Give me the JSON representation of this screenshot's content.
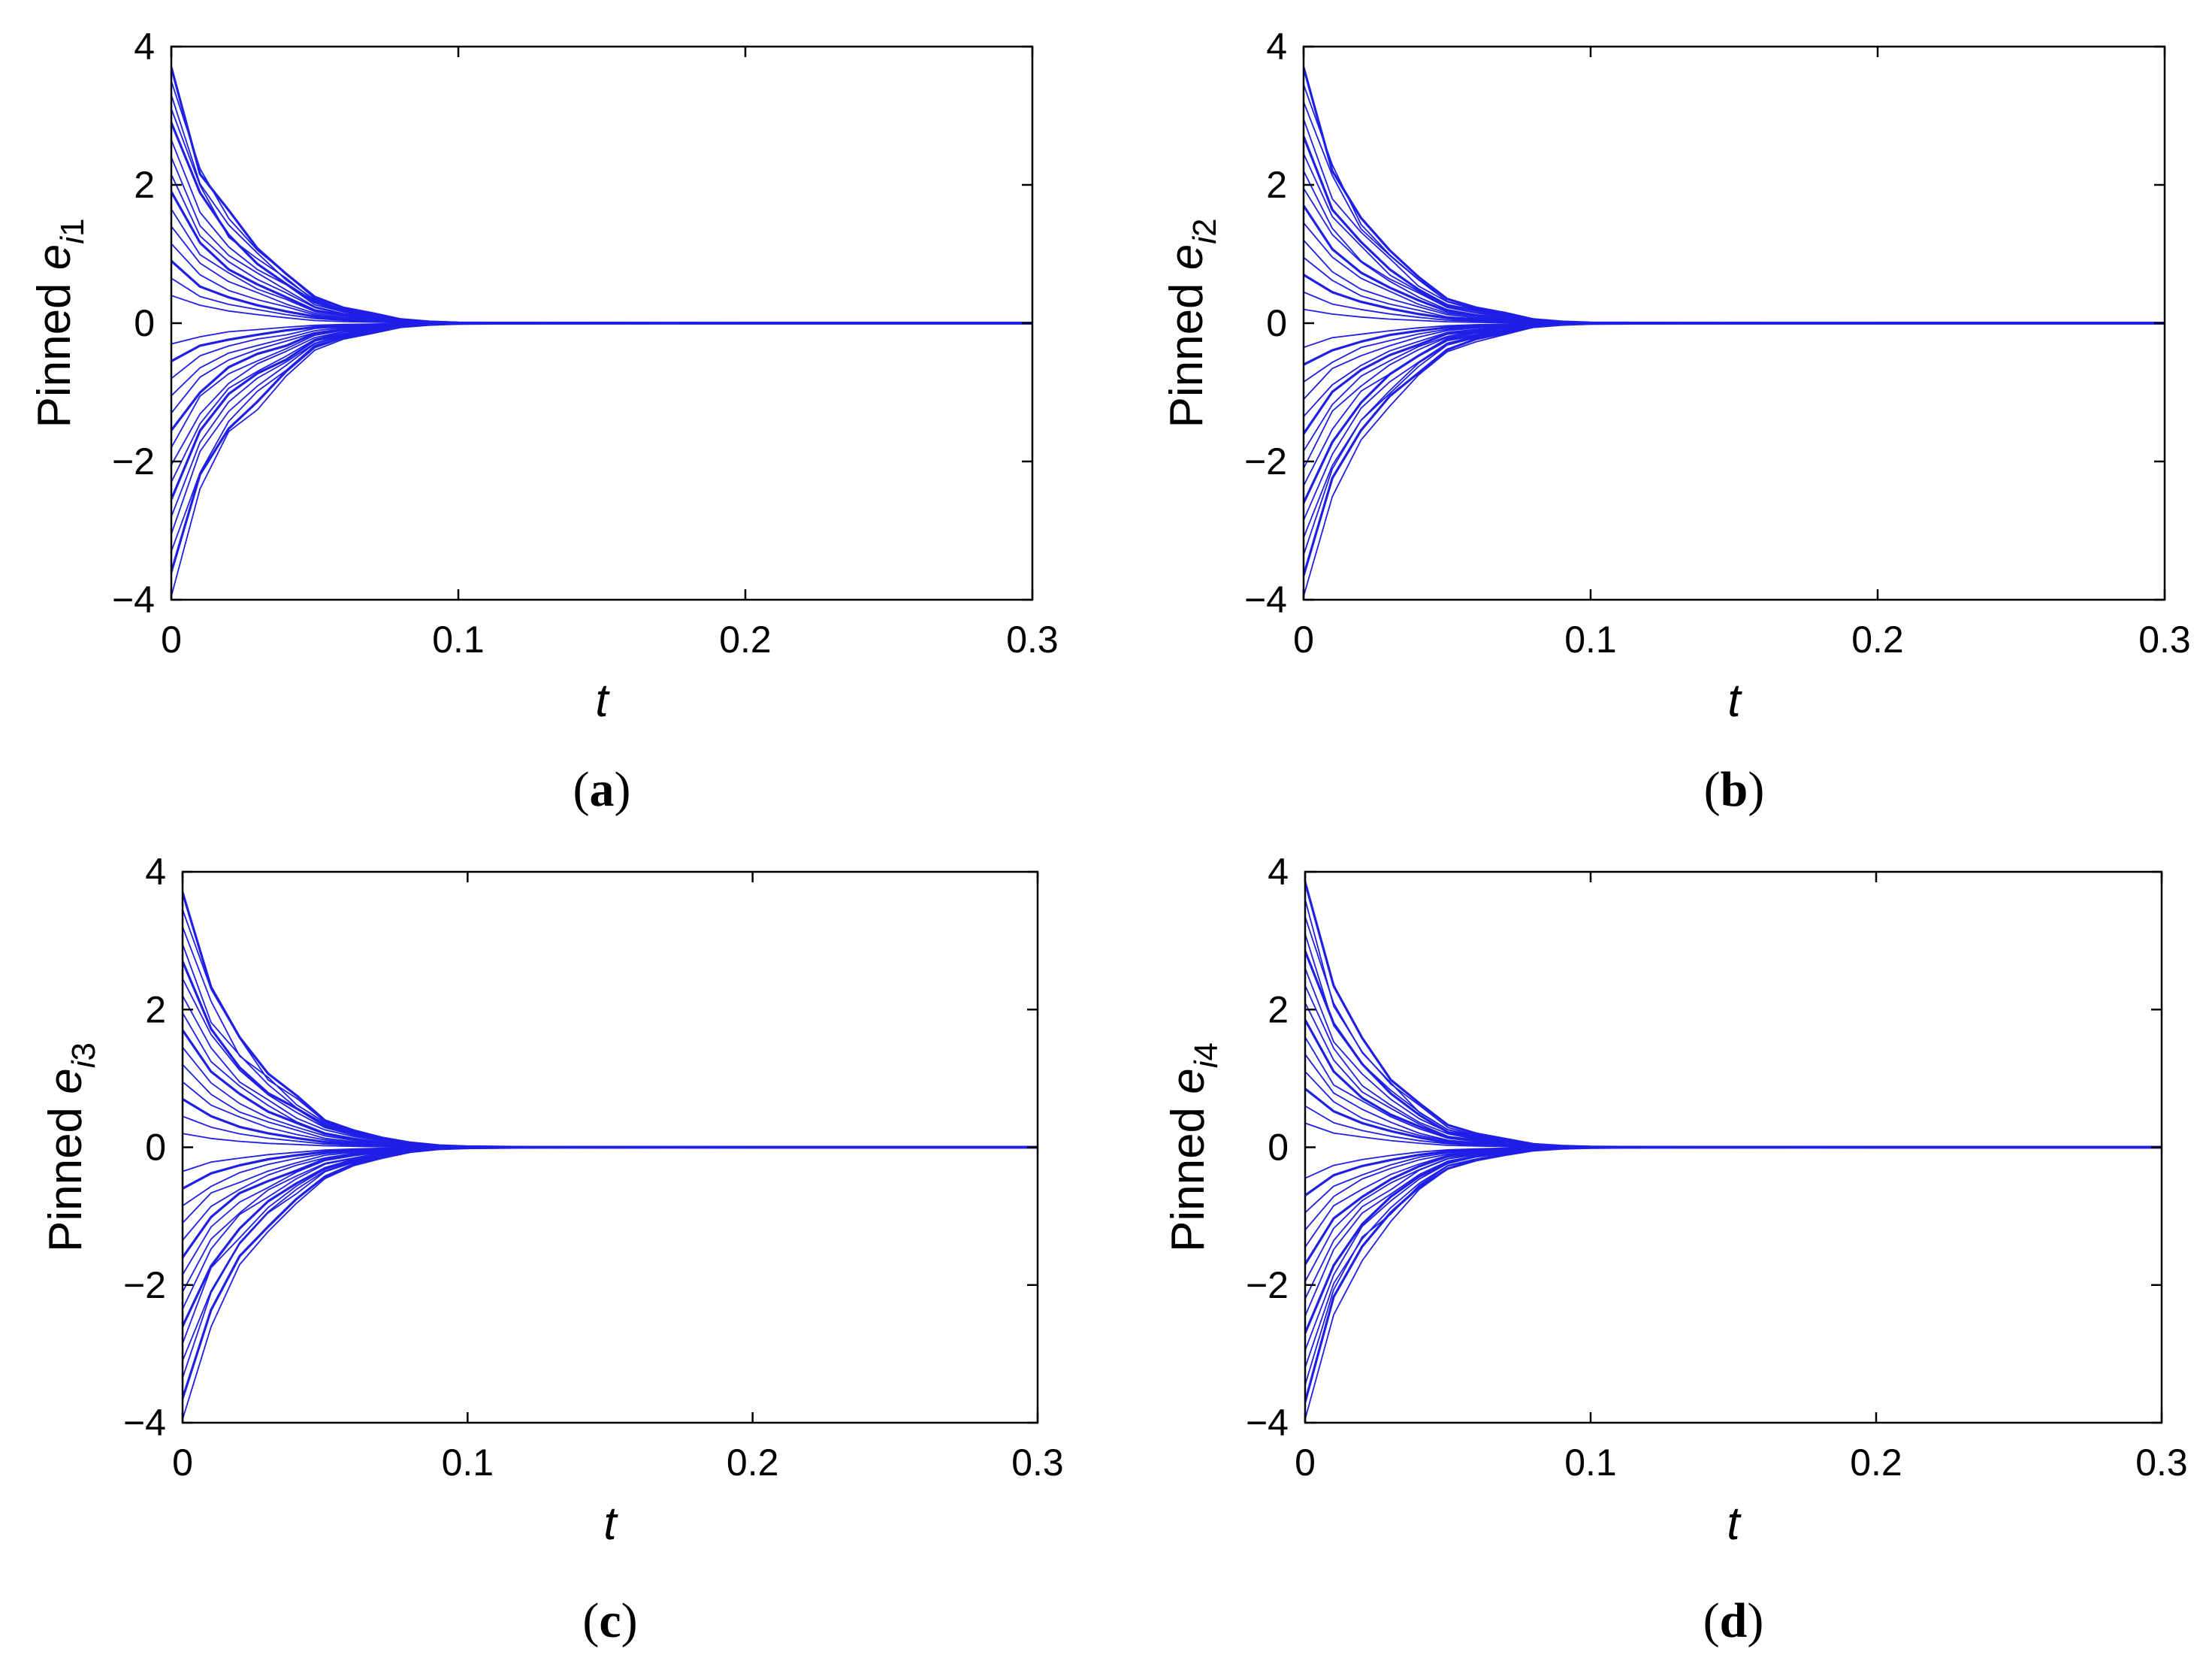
{
  "figure": {
    "captions": [
      "(a)",
      "(b)",
      "(c)",
      "(d)"
    ]
  },
  "style": {
    "line_color": "#1f1fe6",
    "axis_color": "#000000",
    "background": "#ffffff"
  },
  "chart_data": [
    {
      "type": "line",
      "panel": "a",
      "caption": {
        "open": "(",
        "letter": "a",
        "close": ")"
      },
      "xlabel": "t",
      "ylabel": {
        "prefix": "Pinned ",
        "var": "e",
        "sub_i": "i",
        "sub_n": "1"
      },
      "xlim": [
        0,
        0.3
      ],
      "ylim": [
        -4,
        4
      ],
      "xticks": [
        0,
        0.1,
        0.2,
        0.3
      ],
      "xtick_labels": [
        "0",
        "0.1",
        "0.2",
        "0.3"
      ],
      "yticks": [
        -4,
        -2,
        0,
        2,
        4
      ],
      "ytick_labels": [
        "−4",
        "−2",
        "0",
        "2",
        "4"
      ],
      "grid": false,
      "n_series": 30,
      "x": [
        0,
        0.01,
        0.02,
        0.03,
        0.04,
        0.05,
        0.06,
        0.07,
        0.08,
        0.09,
        0.1,
        0.12,
        0.15,
        0.2,
        0.3
      ],
      "series_initial": [
        3.7,
        3.5,
        3.3,
        3.1,
        2.9,
        2.65,
        2.4,
        2.15,
        1.9,
        1.65,
        1.4,
        1.15,
        0.9,
        0.65,
        0.4,
        -0.3,
        -0.55,
        -0.8,
        -1.05,
        -1.3,
        -1.55,
        -1.8,
        -2.05,
        -2.3,
        -2.55,
        -2.8,
        -3.05,
        -3.3,
        -3.6,
        -3.95
      ],
      "decay_profile": [
        1.0,
        0.62,
        0.42,
        0.3,
        0.2,
        0.1,
        0.06,
        0.04,
        0.015,
        0.006,
        0.002,
        0.0008,
        0.0002,
        0.0,
        0.0
      ]
    },
    {
      "type": "line",
      "panel": "b",
      "caption": {
        "open": "(",
        "letter": "b",
        "close": ")"
      },
      "xlabel": "t",
      "ylabel": {
        "prefix": "Pinned ",
        "var": "e",
        "sub_i": "i",
        "sub_n": "2"
      },
      "xlim": [
        0,
        0.3
      ],
      "ylim": [
        -4,
        4
      ],
      "xticks": [
        0,
        0.1,
        0.2,
        0.3
      ],
      "xtick_labels": [
        "0",
        "0.1",
        "0.2",
        "0.3"
      ],
      "yticks": [
        -4,
        -2,
        0,
        2,
        4
      ],
      "ytick_labels": [
        "−4",
        "−2",
        "0",
        "2",
        "4"
      ],
      "grid": false,
      "n_series": 30,
      "x": [
        0,
        0.01,
        0.02,
        0.03,
        0.04,
        0.05,
        0.06,
        0.07,
        0.08,
        0.09,
        0.1,
        0.12,
        0.15,
        0.2,
        0.3
      ],
      "series_initial": [
        3.7,
        3.45,
        3.2,
        2.95,
        2.7,
        2.45,
        2.2,
        1.95,
        1.7,
        1.45,
        1.2,
        0.95,
        0.7,
        0.45,
        0.2,
        -0.35,
        -0.6,
        -0.85,
        -1.1,
        -1.35,
        -1.6,
        -1.85,
        -2.1,
        -2.35,
        -2.6,
        -2.85,
        -3.1,
        -3.35,
        -3.65,
        -3.95
      ],
      "decay_profile": [
        1.0,
        0.63,
        0.43,
        0.3,
        0.19,
        0.1,
        0.065,
        0.04,
        0.015,
        0.006,
        0.002,
        0.0008,
        0.0002,
        0.0,
        0.0
      ]
    },
    {
      "type": "line",
      "panel": "c",
      "caption": {
        "open": "(",
        "letter": "c",
        "close": ")"
      },
      "xlabel": "t",
      "ylabel": {
        "prefix": "Pinned ",
        "var": "e",
        "sub_i": "i",
        "sub_n": "3"
      },
      "xlim": [
        0,
        0.3
      ],
      "ylim": [
        -4,
        4
      ],
      "xticks": [
        0,
        0.1,
        0.2,
        0.3
      ],
      "xtick_labels": [
        "0",
        "0.1",
        "0.2",
        "0.3"
      ],
      "yticks": [
        -4,
        -2,
        0,
        2,
        4
      ],
      "ytick_labels": [
        "−4",
        "−2",
        "0",
        "2",
        "4"
      ],
      "grid": false,
      "n_series": 30,
      "x": [
        0,
        0.01,
        0.02,
        0.03,
        0.04,
        0.05,
        0.06,
        0.07,
        0.08,
        0.09,
        0.1,
        0.12,
        0.15,
        0.2,
        0.3
      ],
      "series_initial": [
        3.7,
        3.45,
        3.2,
        2.95,
        2.7,
        2.45,
        2.2,
        1.95,
        1.7,
        1.45,
        1.2,
        0.95,
        0.7,
        0.45,
        0.2,
        -0.35,
        -0.6,
        -0.85,
        -1.1,
        -1.35,
        -1.6,
        -1.85,
        -2.1,
        -2.35,
        -2.6,
        -2.85,
        -3.1,
        -3.35,
        -3.65,
        -3.95
      ],
      "decay_profile": [
        1.0,
        0.64,
        0.44,
        0.3,
        0.2,
        0.11,
        0.07,
        0.04,
        0.018,
        0.007,
        0.003,
        0.001,
        0.0003,
        0.0,
        0.0
      ]
    },
    {
      "type": "line",
      "panel": "d",
      "caption": {
        "open": "(",
        "letter": "d",
        "close": ")"
      },
      "xlabel": "t",
      "ylabel": {
        "prefix": "Pinned ",
        "var": "e",
        "sub_i": "i",
        "sub_n": "4"
      },
      "xlim": [
        0,
        0.3
      ],
      "ylim": [
        -4,
        4
      ],
      "xticks": [
        0,
        0.1,
        0.2,
        0.3
      ],
      "xtick_labels": [
        "0",
        "0.1",
        "0.2",
        "0.3"
      ],
      "yticks": [
        -4,
        -2,
        0,
        2,
        4
      ],
      "ytick_labels": [
        "−4",
        "−2",
        "0",
        "2",
        "4"
      ],
      "grid": false,
      "n_series": 30,
      "x": [
        0,
        0.01,
        0.02,
        0.03,
        0.04,
        0.05,
        0.06,
        0.07,
        0.08,
        0.09,
        0.1,
        0.12,
        0.15,
        0.2,
        0.3
      ],
      "series_initial": [
        3.85,
        3.6,
        3.35,
        3.1,
        2.85,
        2.6,
        2.35,
        2.1,
        1.85,
        1.6,
        1.35,
        1.1,
        0.85,
        0.6,
        0.35,
        -0.45,
        -0.7,
        -0.95,
        -1.2,
        -1.45,
        -1.7,
        -1.95,
        -2.2,
        -2.45,
        -2.7,
        -2.95,
        -3.2,
        -3.45,
        -3.7,
        -3.95
      ],
      "decay_profile": [
        1.0,
        0.6,
        0.4,
        0.27,
        0.16,
        0.08,
        0.05,
        0.03,
        0.012,
        0.005,
        0.002,
        0.0007,
        0.0002,
        0.0,
        0.0
      ]
    }
  ]
}
